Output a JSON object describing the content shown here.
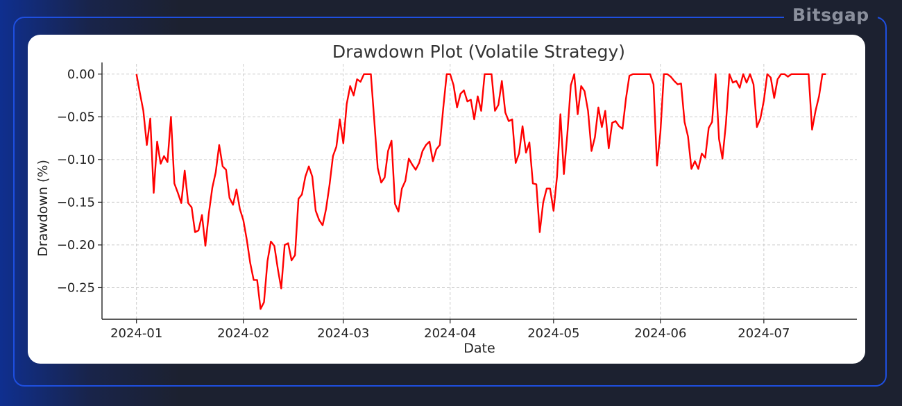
{
  "brand": "Bitsgap",
  "colors": {
    "line": "#ff0000",
    "grid": "#cccccc",
    "accent_border": "#1e4fe0"
  },
  "chart_data": {
    "type": "line",
    "title": "Drawdown Plot (Volatile Strategy)",
    "xlabel": "Date",
    "ylabel": "Drawdown (%)",
    "x_ticks": [
      "2024-01-01",
      "2024-02-01",
      "2024-03-01",
      "2024-04-01",
      "2024-05-01",
      "2024-06-01",
      "2024-07-01"
    ],
    "x_tick_labels": [
      "2024-01",
      "2024-02",
      "2024-03",
      "2024-04",
      "2024-05",
      "2024-06",
      "2024-07"
    ],
    "y_ticks": [
      0.0,
      -0.05,
      -0.1,
      -0.15,
      -0.2,
      -0.25
    ],
    "y_tick_labels": [
      "0.00",
      "−0.05",
      "−0.10",
      "−0.15",
      "−0.20",
      "−0.25"
    ],
    "xlim": [
      "2023-12-22",
      "2024-07-28"
    ],
    "ylim": [
      -0.287,
      0.012
    ],
    "grid": true,
    "series": [
      {
        "color": "#ff0000",
        "points": [
          [
            "2024-01-01",
            0.0
          ],
          [
            "2024-01-02",
            -0.022
          ],
          [
            "2024-01-03",
            -0.043
          ],
          [
            "2024-01-04",
            -0.083
          ],
          [
            "2024-01-05",
            -0.052
          ],
          [
            "2024-01-06",
            -0.139
          ],
          [
            "2024-01-07",
            -0.079
          ],
          [
            "2024-01-08",
            -0.105
          ],
          [
            "2024-01-09",
            -0.096
          ],
          [
            "2024-01-10",
            -0.103
          ],
          [
            "2024-01-11",
            -0.05
          ],
          [
            "2024-01-12",
            -0.128
          ],
          [
            "2024-01-13",
            -0.139
          ],
          [
            "2024-01-14",
            -0.151
          ],
          [
            "2024-01-15",
            -0.113
          ],
          [
            "2024-01-16",
            -0.151
          ],
          [
            "2024-01-17",
            -0.156
          ],
          [
            "2024-01-18",
            -0.185
          ],
          [
            "2024-01-19",
            -0.183
          ],
          [
            "2024-01-20",
            -0.165
          ],
          [
            "2024-01-21",
            -0.201
          ],
          [
            "2024-01-22",
            -0.163
          ],
          [
            "2024-01-23",
            -0.133
          ],
          [
            "2024-01-24",
            -0.115
          ],
          [
            "2024-01-25",
            -0.083
          ],
          [
            "2024-01-26",
            -0.108
          ],
          [
            "2024-01-27",
            -0.112
          ],
          [
            "2024-01-28",
            -0.145
          ],
          [
            "2024-01-29",
            -0.153
          ],
          [
            "2024-01-30",
            -0.135
          ],
          [
            "2024-01-31",
            -0.158
          ],
          [
            "2024-02-01",
            -0.171
          ],
          [
            "2024-02-02",
            -0.194
          ],
          [
            "2024-02-03",
            -0.221
          ],
          [
            "2024-02-04",
            -0.241
          ],
          [
            "2024-02-05",
            -0.241
          ],
          [
            "2024-02-06",
            -0.275
          ],
          [
            "2024-02-07",
            -0.267
          ],
          [
            "2024-02-08",
            -0.219
          ],
          [
            "2024-02-09",
            -0.196
          ],
          [
            "2024-02-10",
            -0.201
          ],
          [
            "2024-02-11",
            -0.228
          ],
          [
            "2024-02-12",
            -0.251
          ],
          [
            "2024-02-13",
            -0.2
          ],
          [
            "2024-02-14",
            -0.198
          ],
          [
            "2024-02-15",
            -0.218
          ],
          [
            "2024-02-16",
            -0.212
          ],
          [
            "2024-02-17",
            -0.146
          ],
          [
            "2024-02-18",
            -0.141
          ],
          [
            "2024-02-19",
            -0.12
          ],
          [
            "2024-02-20",
            -0.108
          ],
          [
            "2024-02-21",
            -0.12
          ],
          [
            "2024-02-22",
            -0.16
          ],
          [
            "2024-02-23",
            -0.171
          ],
          [
            "2024-02-24",
            -0.177
          ],
          [
            "2024-02-25",
            -0.158
          ],
          [
            "2024-02-26",
            -0.13
          ],
          [
            "2024-02-27",
            -0.096
          ],
          [
            "2024-02-28",
            -0.085
          ],
          [
            "2024-02-29",
            -0.053
          ],
          [
            "2024-03-01",
            -0.081
          ],
          [
            "2024-03-02",
            -0.035
          ],
          [
            "2024-03-03",
            -0.014
          ],
          [
            "2024-03-04",
            -0.025
          ],
          [
            "2024-03-05",
            -0.006
          ],
          [
            "2024-03-06",
            -0.009
          ],
          [
            "2024-03-07",
            0.0
          ],
          [
            "2024-03-08",
            0.0
          ],
          [
            "2024-03-09",
            0.0
          ],
          [
            "2024-03-10",
            -0.055
          ],
          [
            "2024-03-11",
            -0.11
          ],
          [
            "2024-03-12",
            -0.127
          ],
          [
            "2024-03-13",
            -0.121
          ],
          [
            "2024-03-14",
            -0.09
          ],
          [
            "2024-03-15",
            -0.078
          ],
          [
            "2024-03-16",
            -0.152
          ],
          [
            "2024-03-17",
            -0.161
          ],
          [
            "2024-03-18",
            -0.134
          ],
          [
            "2024-03-19",
            -0.125
          ],
          [
            "2024-03-20",
            -0.099
          ],
          [
            "2024-03-21",
            -0.106
          ],
          [
            "2024-03-22",
            -0.112
          ],
          [
            "2024-03-23",
            -0.104
          ],
          [
            "2024-03-24",
            -0.09
          ],
          [
            "2024-03-25",
            -0.083
          ],
          [
            "2024-03-26",
            -0.079
          ],
          [
            "2024-03-27",
            -0.102
          ],
          [
            "2024-03-28",
            -0.088
          ],
          [
            "2024-03-29",
            -0.083
          ],
          [
            "2024-03-30",
            -0.04
          ],
          [
            "2024-03-31",
            0.0
          ],
          [
            "2024-04-01",
            0.0
          ],
          [
            "2024-04-02",
            -0.013
          ],
          [
            "2024-04-03",
            -0.039
          ],
          [
            "2024-04-04",
            -0.023
          ],
          [
            "2024-04-05",
            -0.019
          ],
          [
            "2024-04-06",
            -0.032
          ],
          [
            "2024-04-07",
            -0.03
          ],
          [
            "2024-04-08",
            -0.053
          ],
          [
            "2024-04-09",
            -0.026
          ],
          [
            "2024-04-10",
            -0.043
          ],
          [
            "2024-04-11",
            0.0
          ],
          [
            "2024-04-12",
            0.0
          ],
          [
            "2024-04-13",
            0.0
          ],
          [
            "2024-04-14",
            -0.043
          ],
          [
            "2024-04-15",
            -0.036
          ],
          [
            "2024-04-16",
            -0.008
          ],
          [
            "2024-04-17",
            -0.045
          ],
          [
            "2024-04-18",
            -0.055
          ],
          [
            "2024-04-19",
            -0.053
          ],
          [
            "2024-04-20",
            -0.104
          ],
          [
            "2024-04-21",
            -0.093
          ],
          [
            "2024-04-22",
            -0.061
          ],
          [
            "2024-04-23",
            -0.092
          ],
          [
            "2024-04-24",
            -0.08
          ],
          [
            "2024-04-25",
            -0.128
          ],
          [
            "2024-04-26",
            -0.129
          ],
          [
            "2024-04-27",
            -0.185
          ],
          [
            "2024-04-28",
            -0.15
          ],
          [
            "2024-04-29",
            -0.134
          ],
          [
            "2024-04-30",
            -0.134
          ],
          [
            "2024-05-01",
            -0.16
          ],
          [
            "2024-05-02",
            -0.12
          ],
          [
            "2024-05-03",
            -0.047
          ],
          [
            "2024-05-04",
            -0.117
          ],
          [
            "2024-05-05",
            -0.07
          ],
          [
            "2024-05-06",
            -0.013
          ],
          [
            "2024-05-07",
            0.0
          ],
          [
            "2024-05-08",
            -0.047
          ],
          [
            "2024-05-09",
            -0.014
          ],
          [
            "2024-05-10",
            -0.02
          ],
          [
            "2024-05-11",
            -0.043
          ],
          [
            "2024-05-12",
            -0.09
          ],
          [
            "2024-05-13",
            -0.074
          ],
          [
            "2024-05-14",
            -0.039
          ],
          [
            "2024-05-15",
            -0.062
          ],
          [
            "2024-05-16",
            -0.043
          ],
          [
            "2024-05-17",
            -0.087
          ],
          [
            "2024-05-18",
            -0.057
          ],
          [
            "2024-05-19",
            -0.055
          ],
          [
            "2024-05-20",
            -0.061
          ],
          [
            "2024-05-21",
            -0.064
          ],
          [
            "2024-05-22",
            -0.029
          ],
          [
            "2024-05-23",
            -0.002
          ],
          [
            "2024-05-24",
            0.0
          ],
          [
            "2024-05-25",
            0.0
          ],
          [
            "2024-05-26",
            0.0
          ],
          [
            "2024-05-27",
            0.0
          ],
          [
            "2024-05-28",
            0.0
          ],
          [
            "2024-05-29",
            0.0
          ],
          [
            "2024-05-30",
            -0.012
          ],
          [
            "2024-05-31",
            -0.107
          ],
          [
            "2024-06-01",
            -0.068
          ],
          [
            "2024-06-02",
            0.0
          ],
          [
            "2024-06-03",
            0.0
          ],
          [
            "2024-06-04",
            -0.003
          ],
          [
            "2024-06-05",
            -0.008
          ],
          [
            "2024-06-06",
            -0.012
          ],
          [
            "2024-06-07",
            -0.011
          ],
          [
            "2024-06-08",
            -0.056
          ],
          [
            "2024-06-09",
            -0.073
          ],
          [
            "2024-06-10",
            -0.111
          ],
          [
            "2024-06-11",
            -0.102
          ],
          [
            "2024-06-12",
            -0.111
          ],
          [
            "2024-06-13",
            -0.093
          ],
          [
            "2024-06-14",
            -0.098
          ],
          [
            "2024-06-15",
            -0.063
          ],
          [
            "2024-06-16",
            -0.056
          ],
          [
            "2024-06-17",
            0.0
          ],
          [
            "2024-06-18",
            -0.076
          ],
          [
            "2024-06-19",
            -0.099
          ],
          [
            "2024-06-20",
            -0.058
          ],
          [
            "2024-06-21",
            0.0
          ],
          [
            "2024-06-22",
            -0.01
          ],
          [
            "2024-06-23",
            -0.008
          ],
          [
            "2024-06-24",
            -0.016
          ],
          [
            "2024-06-25",
            0.0
          ],
          [
            "2024-06-26",
            -0.01
          ],
          [
            "2024-06-27",
            0.0
          ],
          [
            "2024-06-28",
            -0.012
          ],
          [
            "2024-06-29",
            -0.062
          ],
          [
            "2024-06-30",
            -0.052
          ],
          [
            "2024-07-01",
            -0.031
          ],
          [
            "2024-07-02",
            0.0
          ],
          [
            "2024-07-03",
            -0.004
          ],
          [
            "2024-07-04",
            -0.028
          ],
          [
            "2024-07-05",
            -0.006
          ],
          [
            "2024-07-06",
            0.0
          ],
          [
            "2024-07-07",
            0.0
          ],
          [
            "2024-07-08",
            -0.003
          ],
          [
            "2024-07-09",
            0.0
          ],
          [
            "2024-07-10",
            0.0
          ],
          [
            "2024-07-11",
            0.0
          ],
          [
            "2024-07-12",
            0.0
          ],
          [
            "2024-07-13",
            0.0
          ],
          [
            "2024-07-14",
            0.0
          ],
          [
            "2024-07-15",
            -0.065
          ],
          [
            "2024-07-16",
            -0.043
          ],
          [
            "2024-07-17",
            -0.026
          ],
          [
            "2024-07-18",
            0.0
          ],
          [
            "2024-07-19",
            0.0
          ]
        ]
      }
    ]
  }
}
